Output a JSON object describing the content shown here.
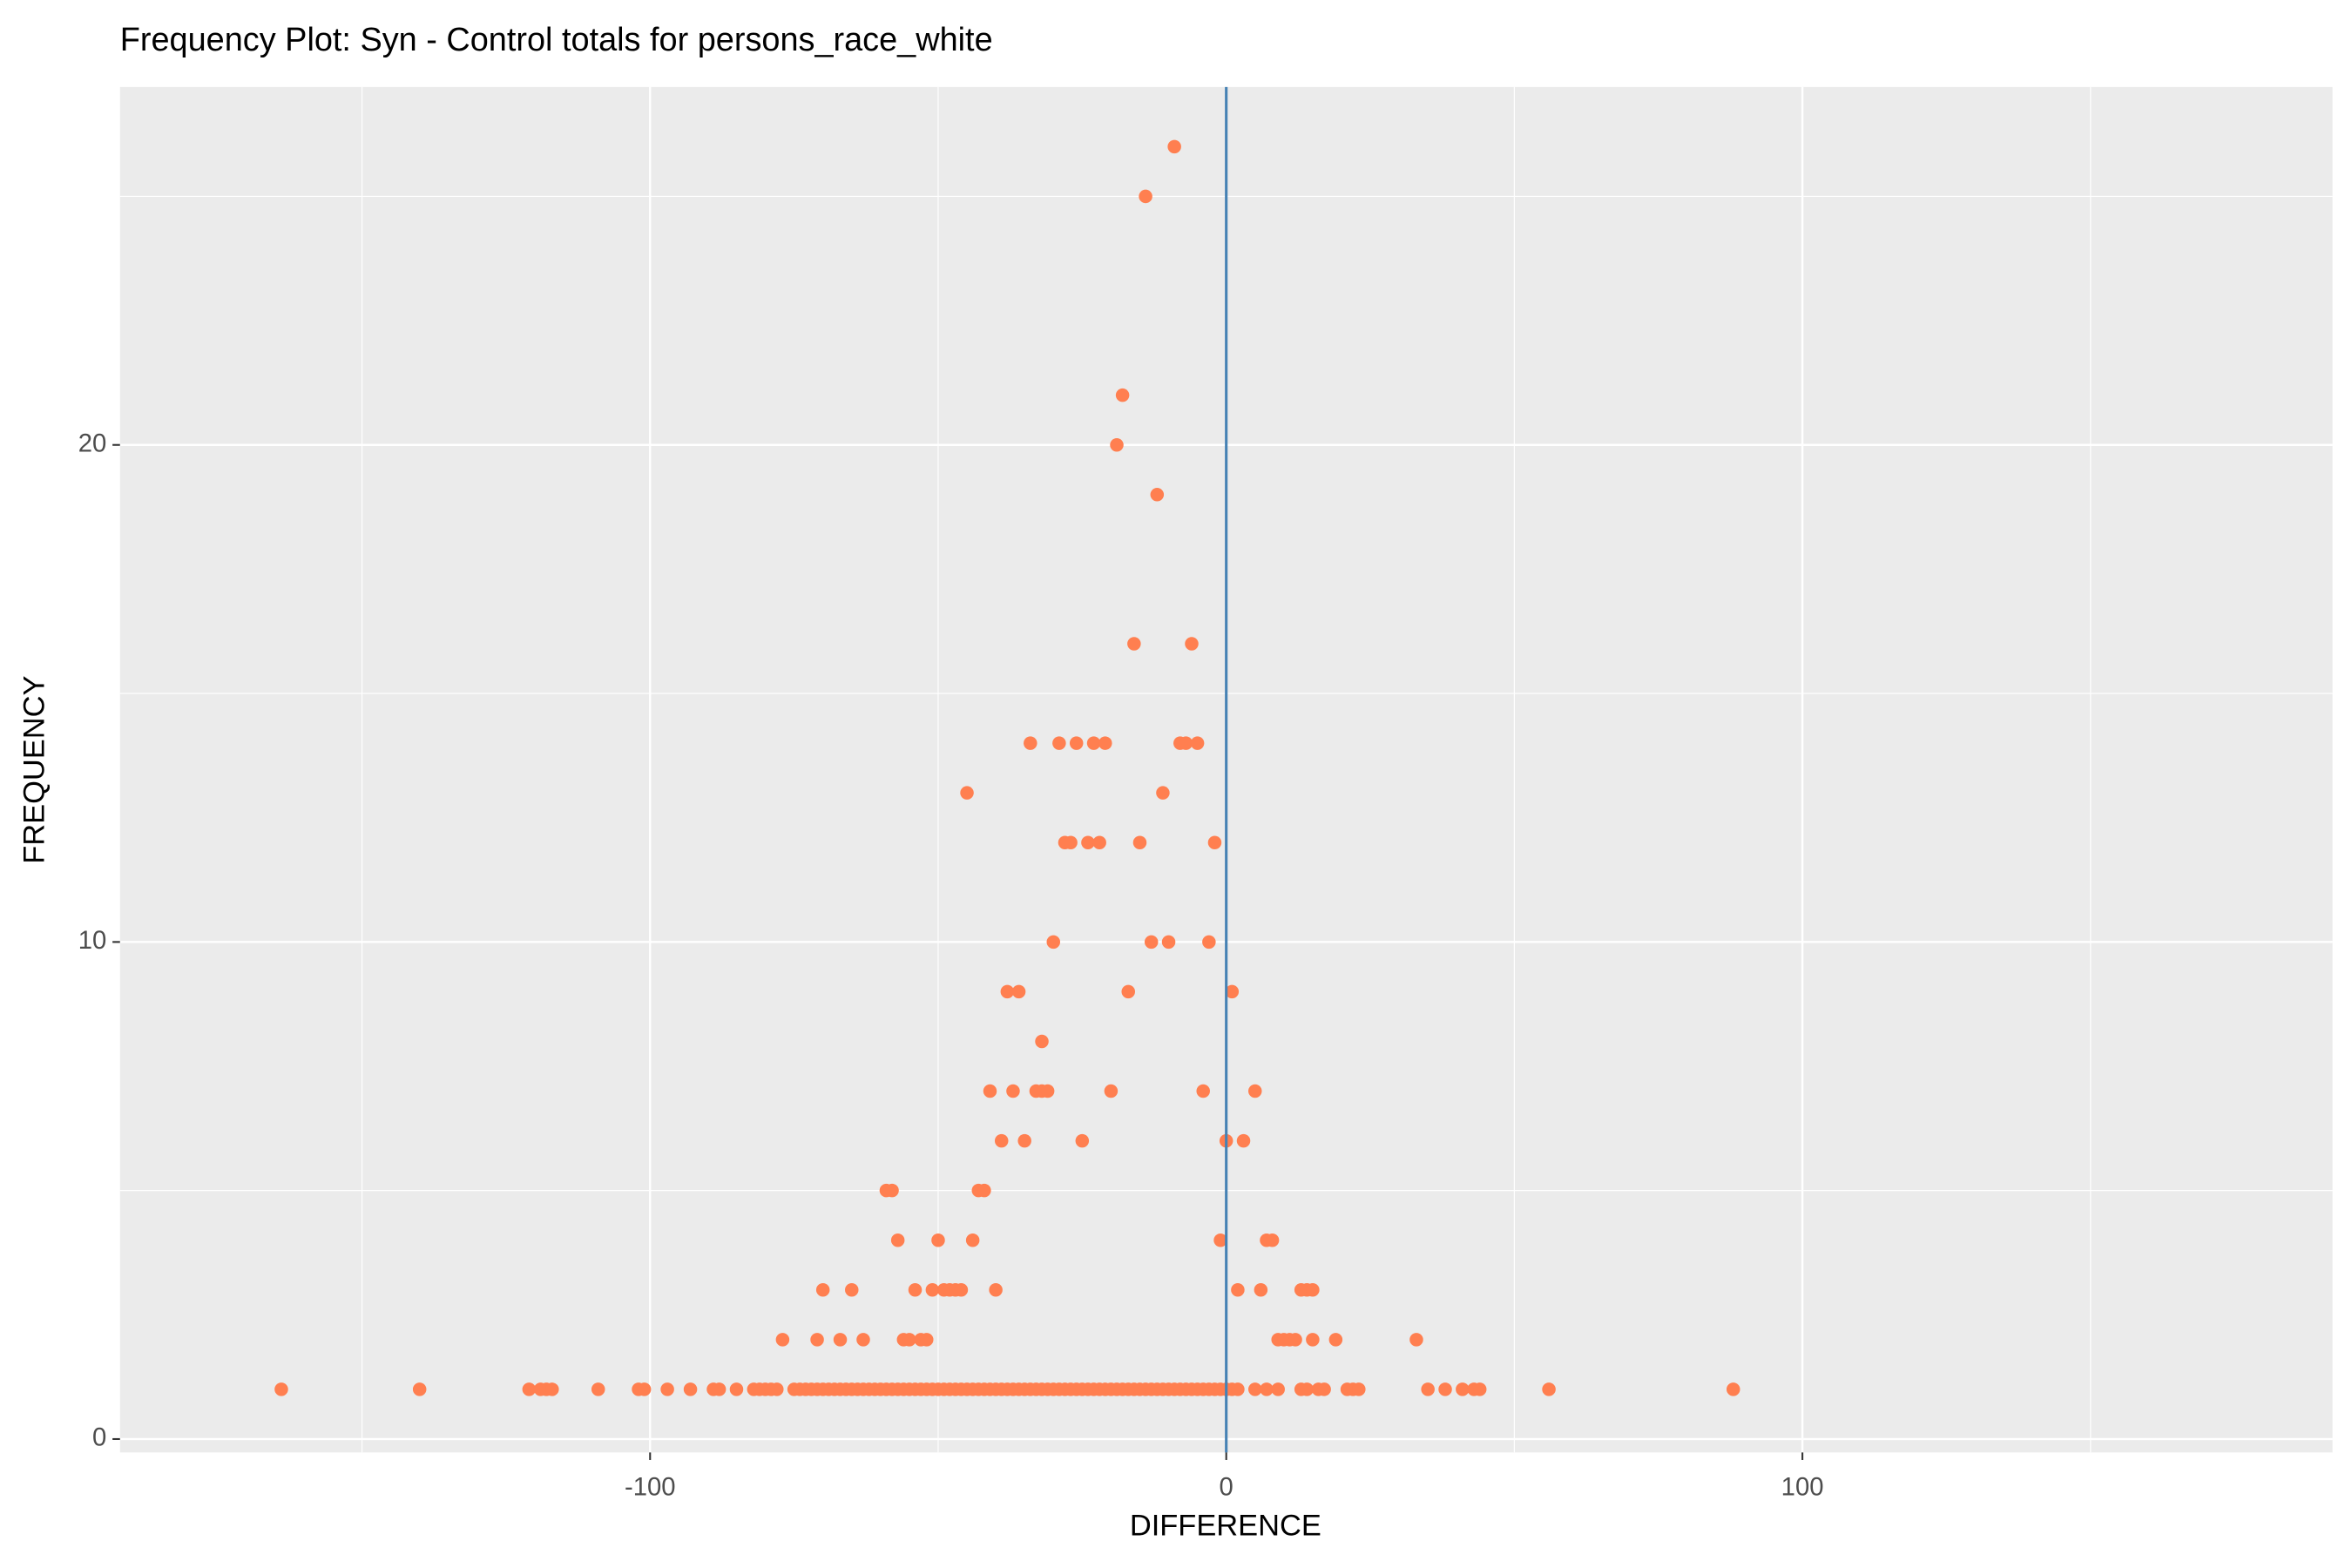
{
  "chart_data": {
    "type": "scatter",
    "title": "Frequency Plot: Syn - Control totals for persons_race_white",
    "xlabel": "DIFFERENCE",
    "ylabel": "FREQUENCY",
    "color": "#ff7f50",
    "vline": 0,
    "vline_color": "#4682b4",
    "grid": true,
    "xlim": [
      -192,
      192
    ],
    "ylim": [
      -0.27,
      27.2
    ],
    "xticks": [
      -100,
      0,
      100
    ],
    "yticks": [
      0,
      10,
      20
    ],
    "x": [
      -164,
      -140,
      -121,
      -119,
      -118,
      -117,
      -109,
      -102,
      -101,
      -97,
      -93,
      -89,
      -88,
      -85,
      -82,
      -81,
      -80,
      -79,
      -78,
      -75,
      -74,
      -73,
      -72,
      -71,
      -70,
      -69,
      -68,
      -67,
      -66,
      -65,
      -64,
      -63,
      -62,
      -61,
      -60,
      -59,
      -58,
      -57,
      -56,
      -55,
      -54,
      -53,
      -52,
      -51,
      -50,
      -49,
      -48,
      -47,
      -46,
      -45,
      -44,
      -43,
      -42,
      -41,
      -40,
      -39,
      -38,
      -37,
      -36,
      -35,
      -34,
      -33,
      -32,
      -31,
      -30,
      -29,
      -28,
      -27,
      -26,
      -25,
      -24,
      -23,
      -22,
      -21,
      -20,
      -19,
      -18,
      -17,
      -16,
      -15,
      -14,
      -13,
      -12,
      -11,
      -10,
      -9,
      -8,
      -7,
      -6,
      -5,
      -4,
      -3,
      -2,
      -1,
      0,
      1,
      2,
      5,
      7,
      9,
      13,
      14,
      16,
      17,
      21,
      22,
      23,
      35,
      38,
      41,
      43,
      44,
      56,
      88,
      -77,
      -71,
      -67,
      -63,
      -56,
      -55,
      -53,
      -52,
      9,
      10,
      11,
      12,
      15,
      19,
      33,
      -70,
      -65,
      -54,
      -51,
      -49,
      -48,
      -47,
      -46,
      -40,
      2,
      6,
      13,
      14,
      15,
      -57,
      -50,
      -44,
      -1,
      7,
      8,
      -59,
      -58,
      -43,
      -42,
      -39,
      -35,
      -25,
      0,
      3,
      -41,
      -37,
      -33,
      -32,
      -31,
      -20,
      -4,
      5,
      -32,
      -38,
      -36,
      -17,
      1,
      -30,
      -13,
      -10,
      -3,
      -28,
      -27,
      -24,
      -22,
      -15,
      -2,
      -45,
      -11,
      -34,
      -29,
      -26,
      -23,
      -21,
      -8,
      -7,
      -5,
      -16,
      -6,
      -12,
      -19,
      -18,
      -14,
      -9
    ],
    "values": [
      1,
      1,
      1,
      1,
      1,
      1,
      1,
      1,
      1,
      1,
      1,
      1,
      1,
      1,
      1,
      1,
      1,
      1,
      1,
      1,
      1,
      1,
      1,
      1,
      1,
      1,
      1,
      1,
      1,
      1,
      1,
      1,
      1,
      1,
      1,
      1,
      1,
      1,
      1,
      1,
      1,
      1,
      1,
      1,
      1,
      1,
      1,
      1,
      1,
      1,
      1,
      1,
      1,
      1,
      1,
      1,
      1,
      1,
      1,
      1,
      1,
      1,
      1,
      1,
      1,
      1,
      1,
      1,
      1,
      1,
      1,
      1,
      1,
      1,
      1,
      1,
      1,
      1,
      1,
      1,
      1,
      1,
      1,
      1,
      1,
      1,
      1,
      1,
      1,
      1,
      1,
      1,
      1,
      1,
      1,
      1,
      1,
      1,
      1,
      1,
      1,
      1,
      1,
      1,
      1,
      1,
      1,
      1,
      1,
      1,
      1,
      1,
      1,
      1,
      2,
      2,
      2,
      2,
      2,
      2,
      2,
      2,
      2,
      2,
      2,
      2,
      2,
      2,
      2,
      3,
      3,
      3,
      3,
      3,
      3,
      3,
      3,
      3,
      3,
      3,
      3,
      3,
      3,
      4,
      4,
      4,
      4,
      4,
      4,
      5,
      5,
      5,
      5,
      6,
      6,
      6,
      6,
      6,
      7,
      7,
      7,
      7,
      7,
      7,
      7,
      7,
      8,
      9,
      9,
      9,
      9,
      10,
      10,
      10,
      10,
      12,
      12,
      12,
      12,
      12,
      12,
      13,
      13,
      14,
      14,
      14,
      14,
      14,
      14,
      14,
      14,
      16,
      16,
      19,
      20,
      21,
      25,
      26
    ]
  }
}
